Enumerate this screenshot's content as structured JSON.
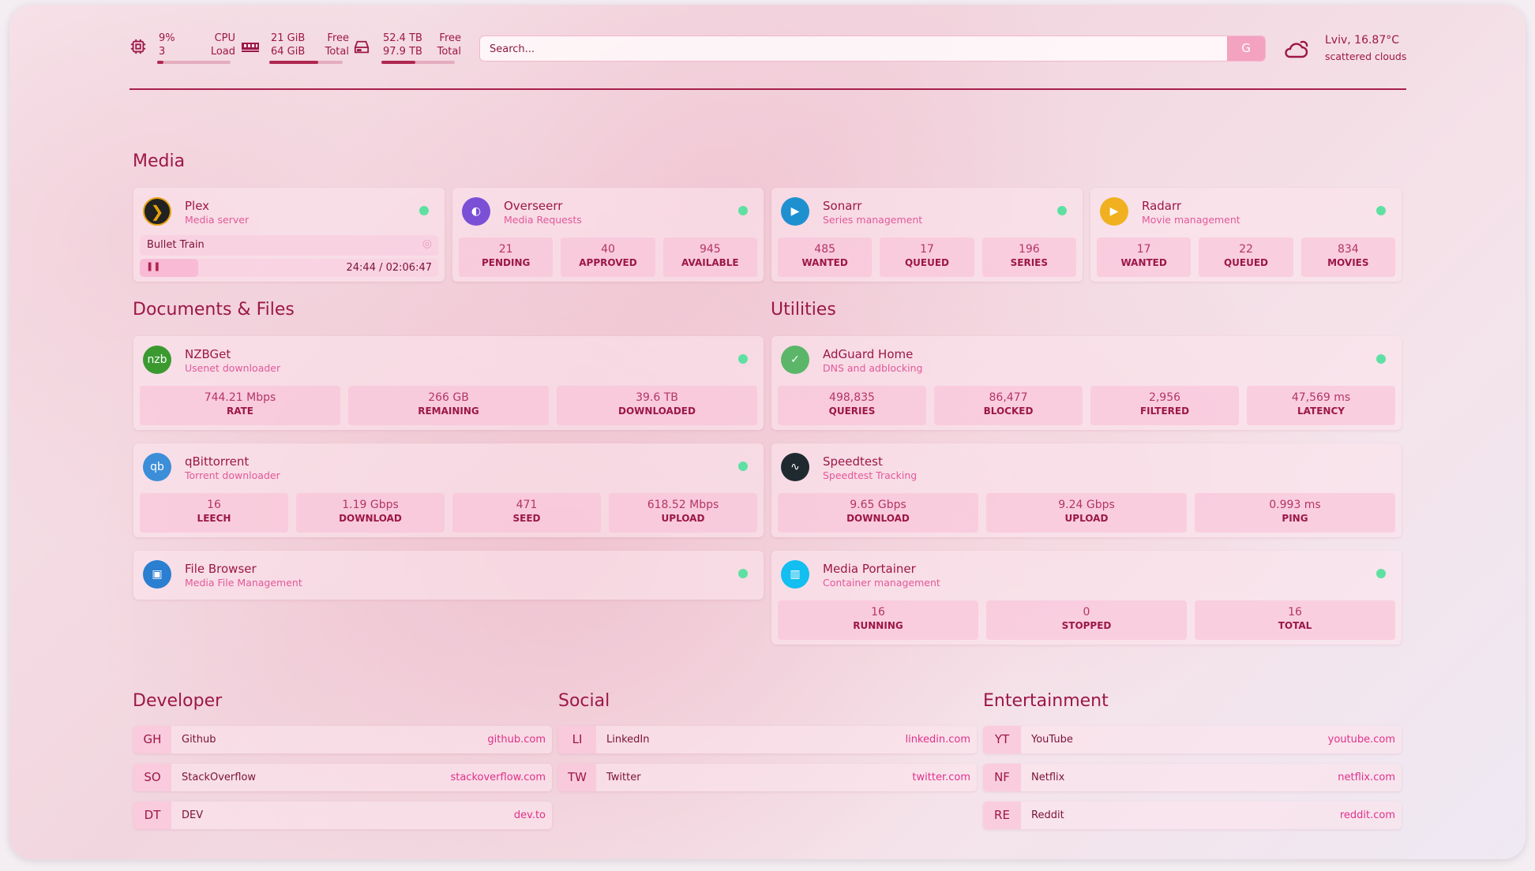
{
  "header": {
    "cpu": {
      "icon": "cpu-icon",
      "value": "9%",
      "value2": "3",
      "label": "CPU",
      "label2": "Load",
      "percent": 9
    },
    "ram": {
      "icon": "memory-icon",
      "value": "21 GiB",
      "value2": "64 GiB",
      "label": "Free",
      "label2": "Total",
      "percent": 67
    },
    "disk": {
      "icon": "hard-drive-icon",
      "value": "52.4 TB",
      "value2": "97.9 TB",
      "label": "Free",
      "label2": "Total",
      "percent": 46
    },
    "search": {
      "placeholder": "Search...",
      "button": "G"
    },
    "weather": {
      "icon": "cloud-sun-icon",
      "location_temp": "Lviv, 16.87°C",
      "condition": "scattered clouds"
    }
  },
  "sections": {
    "media": "Media",
    "docs": "Documents & Files",
    "utilities": "Utilities",
    "developer": "Developer",
    "social": "Social",
    "entertainment": "Entertainment"
  },
  "plex": {
    "name": "Plex",
    "sub": "Media server",
    "title": "Bullet Train",
    "time": "24:44 / 02:06:47",
    "progress": 19.5
  },
  "services": [
    {
      "id": "overseerr",
      "name": "Overseerr",
      "sub": "Media Requests",
      "icon": "overseerr-icon",
      "color": "#7b4fd6",
      "stats": [
        {
          "v": "21",
          "l": "PENDING"
        },
        {
          "v": "40",
          "l": "APPROVED"
        },
        {
          "v": "945",
          "l": "AVAILABLE"
        }
      ]
    },
    {
      "id": "sonarr",
      "name": "Sonarr",
      "sub": "Series management",
      "icon": "sonarr-icon",
      "color": "#1e90d0",
      "stats": [
        {
          "v": "485",
          "l": "WANTED"
        },
        {
          "v": "17",
          "l": "QUEUED"
        },
        {
          "v": "196",
          "l": "SERIES"
        }
      ]
    },
    {
      "id": "radarr",
      "name": "Radarr",
      "sub": "Movie management",
      "icon": "radarr-icon",
      "color": "#f0b020",
      "stats": [
        {
          "v": "17",
          "l": "WANTED"
        },
        {
          "v": "22",
          "l": "QUEUED"
        },
        {
          "v": "834",
          "l": "MOVIES"
        }
      ]
    },
    {
      "id": "nzbget",
      "name": "NZBGet",
      "sub": "Usenet downloader",
      "icon": "nzbget-icon",
      "color": "#3a9a30",
      "glyph": "nzbget",
      "stats": [
        {
          "v": "744.21 Mbps",
          "l": "RATE"
        },
        {
          "v": "266 GB",
          "l": "REMAINING"
        },
        {
          "v": "39.6 TB",
          "l": "DOWNLOADED"
        }
      ]
    },
    {
      "id": "qbittorrent",
      "name": "qBittorrent",
      "sub": "Torrent downloader",
      "icon": "qbittorrent-icon",
      "color": "#3c8ed8",
      "glyph": "qb",
      "stats": [
        {
          "v": "16",
          "l": "LEECH"
        },
        {
          "v": "1.19 Gbps",
          "l": "DOWNLOAD"
        },
        {
          "v": "471",
          "l": "SEED"
        },
        {
          "v": "618.52 Mbps",
          "l": "UPLOAD"
        }
      ]
    },
    {
      "id": "filebrowser",
      "name": "File Browser",
      "sub": "Media File Management",
      "icon": "file-browser-icon",
      "color": "#2a7fd0",
      "stats": []
    },
    {
      "id": "adguard",
      "name": "AdGuard Home",
      "sub": "DNS and adblocking",
      "icon": "adguard-shield-icon",
      "color": "#5bb66a",
      "stats": [
        {
          "v": "498,835",
          "l": "QUERIES"
        },
        {
          "v": "86,477",
          "l": "BLOCKED"
        },
        {
          "v": "2,956",
          "l": "FILTERED"
        },
        {
          "v": "47,569 ms",
          "l": "LATENCY"
        }
      ]
    },
    {
      "id": "speedtest",
      "name": "Speedtest",
      "sub": "Speedtest Tracking",
      "icon": "speedtest-icon",
      "color": "#1f2a30",
      "stats": [
        {
          "v": "9.65 Gbps",
          "l": "DOWNLOAD"
        },
        {
          "v": "9.24 Gbps",
          "l": "UPLOAD"
        },
        {
          "v": "0.993 ms",
          "l": "PING"
        }
      ]
    },
    {
      "id": "portainer",
      "name": "Media Portainer",
      "sub": "Container management",
      "icon": "portainer-icon",
      "color": "#13bef0",
      "stats": [
        {
          "v": "16",
          "l": "RUNNING"
        },
        {
          "v": "0",
          "l": "STOPPED"
        },
        {
          "v": "16",
          "l": "TOTAL"
        }
      ]
    }
  ],
  "bookmarks": {
    "developer": [
      {
        "abbr": "GH",
        "name": "Github",
        "url": "github.com"
      },
      {
        "abbr": "SO",
        "name": "StackOverflow",
        "url": "stackoverflow.com"
      },
      {
        "abbr": "DT",
        "name": "DEV",
        "url": "dev.to"
      }
    ],
    "social": [
      {
        "abbr": "LI",
        "name": "LinkedIn",
        "url": "linkedin.com"
      },
      {
        "abbr": "TW",
        "name": "Twitter",
        "url": "twitter.com"
      }
    ],
    "entertainment": [
      {
        "abbr": "YT",
        "name": "YouTube",
        "url": "youtube.com"
      },
      {
        "abbr": "NF",
        "name": "Netflix",
        "url": "netflix.com"
      },
      {
        "abbr": "RE",
        "name": "Reddit",
        "url": "reddit.com"
      }
    ]
  },
  "colors": {
    "accent": "#9c1747",
    "status_online": "#5fe0a3",
    "link": "#e0308a"
  }
}
